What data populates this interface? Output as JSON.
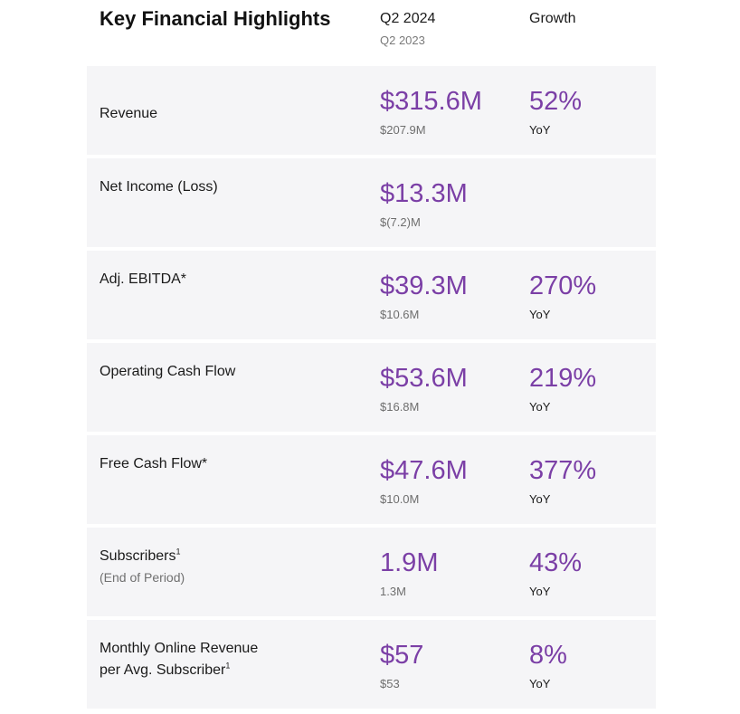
{
  "header": {
    "title": "Key Financial Highlights",
    "current_period": "Q2 2024",
    "prior_period": "Q2 2023",
    "growth": "Growth"
  },
  "rows": [
    {
      "label": "Revenue",
      "current": "$315.6M",
      "prior": "$207.9M",
      "growth": "52%",
      "growth_note": "YoY"
    },
    {
      "label": "Net Income (Loss)",
      "current": "$13.3M",
      "prior": "$(7.2)M",
      "growth": "",
      "growth_note": ""
    },
    {
      "label": "Adj. EBITDA*",
      "current": "$39.3M",
      "prior": "$10.6M",
      "growth": "270%",
      "growth_note": "YoY"
    },
    {
      "label": "Operating Cash Flow",
      "current": "$53.6M",
      "prior": "$16.8M",
      "growth": "219%",
      "growth_note": "YoY"
    },
    {
      "label": "Free Cash Flow*",
      "current": "$47.6M",
      "prior": "$10.0M",
      "growth": "377%",
      "growth_note": "YoY"
    },
    {
      "label": "Subscribers",
      "footnote": "1",
      "sublabel": "(End of Period)",
      "current": "1.9M",
      "prior": "1.3M",
      "growth": "43%",
      "growth_note": "YoY"
    },
    {
      "label_line1": "Monthly Online Revenue",
      "label_line2": "per Avg. Subscriber",
      "footnote": "1",
      "current": "$57",
      "prior": "$53",
      "growth": "8%",
      "growth_note": "YoY"
    }
  ],
  "colors": {
    "accent": "#7b3fa6",
    "row_bg": "#f5f5f7"
  }
}
